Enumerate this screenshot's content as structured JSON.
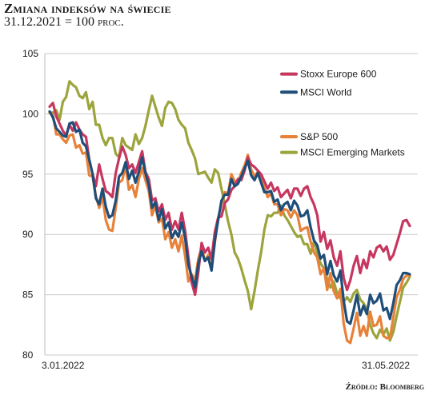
{
  "header": {
    "title": "Zmiana indeksów na świecie",
    "subtitle": "31.12.2021 = 100 proc."
  },
  "footer": {
    "source": "Źródło: Bloomberg"
  },
  "chart_data": {
    "type": "line",
    "title": "Zmiana indeksów na świecie",
    "subtitle": "31.12.2021 = 100 proc.",
    "xlabel": "",
    "ylabel": "",
    "ylim": [
      80,
      105
    ],
    "yticks": [
      80,
      85,
      90,
      95,
      100,
      105
    ],
    "xticks": [
      "3.01.2022",
      "31.05.2022"
    ],
    "grid": "horizontal",
    "legend": "right",
    "series": [
      {
        "name": "Stoxx Europe 600",
        "color": "#c7365f",
        "values": [
          100.6,
          100.9,
          99.8,
          99.2,
          98.6,
          98.2,
          99.1,
          98.6,
          99.3,
          98.7,
          98.3,
          98.1,
          96.2,
          95.0,
          94.0,
          95.8,
          94.6,
          93.6,
          93.4,
          93.1,
          95.1,
          96.3,
          97.3,
          96.6,
          95.5,
          95.8,
          95.1,
          96.0,
          96.9,
          95.2,
          94.6,
          92.8,
          93.0,
          91.9,
          92.5,
          91.2,
          91.8,
          90.4,
          91.1,
          90.4,
          91.8,
          90.3,
          88.1,
          86.0,
          85.0,
          86.9,
          89.3,
          88.5,
          88.9,
          88.0,
          90.2,
          91.4,
          91.5,
          92.6,
          92.9,
          93.7,
          94.0,
          94.6,
          94.5,
          95.3,
          96.4,
          95.8,
          95.6,
          95.3,
          95.0,
          94.4,
          93.8,
          94.3,
          93.6,
          93.9,
          93.1,
          93.4,
          93.7,
          93.0,
          93.8,
          93.8,
          93.2,
          93.8,
          94.0,
          93.1,
          92.5,
          91.6,
          89.4,
          90.2,
          88.8,
          89.5,
          88.1,
          87.4,
          88.6,
          86.4,
          85.4,
          86.2,
          87.4,
          88.2,
          86.8,
          87.9,
          87.2,
          88.6,
          88.1,
          88.9,
          89.1,
          88.6,
          89.0,
          87.9,
          88.3,
          89.2,
          90.1,
          91.1,
          91.2,
          90.7
        ],
        "label_y": 103.3
      },
      {
        "name": "MSCI World",
        "color": "#1f4e79",
        "values": [
          100.2,
          99.7,
          98.8,
          98.5,
          98.2,
          98.1,
          99.2,
          99.3,
          98.5,
          98.7,
          97.6,
          97.3,
          96.2,
          95.0,
          93.0,
          92.5,
          93.8,
          92.3,
          91.4,
          91.6,
          92.8,
          94.8,
          95.1,
          96.0,
          94.6,
          95.3,
          94.3,
          95.2,
          96.4,
          95.1,
          94.1,
          92.2,
          92.7,
          91.2,
          92.1,
          90.5,
          91.0,
          89.7,
          90.3,
          89.8,
          91.0,
          89.7,
          87.5,
          86.5,
          85.6,
          87.6,
          88.6,
          87.8,
          88.1,
          87.0,
          89.5,
          91.2,
          92.8,
          93.3,
          93.3,
          94.6,
          94.0,
          94.2,
          94.8,
          95.5,
          96.1,
          94.9,
          94.5,
          95.1,
          94.3,
          93.5,
          93.5,
          93.6,
          92.7,
          92.9,
          92.0,
          92.5,
          92.7,
          92.0,
          92.8,
          92.4,
          91.5,
          91.6,
          92.0,
          90.6,
          89.5,
          89.1,
          88.0,
          88.3,
          86.7,
          87.8,
          86.6,
          86.1,
          87.0,
          84.5,
          82.8,
          82.6,
          83.7,
          85.0,
          83.3,
          84.1,
          83.4,
          85.0,
          84.3,
          84.5,
          85.1,
          83.7,
          83.9,
          83.0,
          84.3,
          85.8,
          86.2,
          86.8,
          86.8,
          86.7
        ],
        "label_y": 101.8
      },
      {
        "name": "S&P 500",
        "color": "#e8823a",
        "values": [
          100.1,
          99.9,
          98.3,
          98.3,
          97.9,
          97.6,
          98.2,
          98.3,
          97.2,
          97.4,
          96.7,
          96.8,
          94.9,
          94.8,
          93.2,
          92.2,
          93.1,
          91.2,
          90.4,
          90.3,
          92.2,
          94.3,
          94.5,
          95.7,
          93.7,
          94.1,
          93.1,
          94.6,
          95.5,
          94.5,
          93.6,
          91.6,
          92.4,
          91.0,
          91.3,
          89.6,
          90.2,
          88.9,
          89.6,
          88.6,
          89.9,
          88.2,
          86.1,
          86.7,
          86.2,
          88.0,
          88.9,
          87.8,
          88.3,
          87.1,
          89.3,
          91.4,
          92.5,
          93.5,
          93.4,
          95.0,
          94.4,
          94.3,
          95.1,
          95.7,
          96.6,
          95.4,
          94.8,
          95.2,
          94.5,
          93.9,
          93.1,
          93.4,
          92.5,
          92.5,
          91.6,
          92.1,
          92.0,
          91.4,
          92.0,
          91.6,
          90.3,
          90.5,
          90.6,
          89.4,
          88.5,
          88.1,
          86.7,
          87.2,
          85.4,
          86.8,
          85.3,
          84.7,
          85.5,
          82.6,
          81.2,
          81.0,
          82.2,
          83.5,
          81.6,
          82.4,
          81.6,
          83.6,
          82.4,
          82.5,
          83.2,
          81.6,
          81.4,
          81.4,
          83.1,
          84.8,
          85.4,
          86.3,
          86.6,
          86.6
        ],
        "label_y": 98.1
      },
      {
        "name": "MSCI Emerging Markets",
        "color": "#9ca43c",
        "values": [
          100.1,
          100.1,
          100.3,
          99.5,
          101.0,
          101.4,
          102.7,
          102.4,
          102.2,
          101.5,
          101.3,
          101.8,
          100.4,
          101.0,
          99.1,
          99.1,
          98.0,
          97.4,
          98.0,
          98.0,
          96.7,
          96.4,
          98.0,
          97.4,
          97.2,
          97.0,
          98.3,
          97.5,
          98.0,
          99.0,
          100.3,
          101.5,
          100.6,
          99.7,
          99.0,
          100.5,
          101.0,
          100.9,
          100.4,
          99.5,
          99.1,
          98.8,
          97.6,
          97.0,
          96.3,
          95.0,
          95.1,
          95.2,
          94.7,
          94.3,
          95.4,
          95.1,
          93.8,
          92.5,
          91.1,
          90.0,
          88.5,
          88.0,
          87.2,
          86.2,
          85.3,
          83.8,
          85.3,
          87.0,
          88.5,
          90.4,
          91.6,
          91.5,
          91.8,
          91.8,
          92.4,
          91.6,
          91.2,
          90.7,
          90.2,
          89.8,
          89.9,
          89.2,
          89.2,
          88.4,
          89.4,
          88.4,
          87.6,
          87.2,
          86.3,
          85.6,
          86.1,
          85.1,
          84.7,
          84.4,
          84.8,
          84.4,
          85.1,
          85.4,
          84.6,
          84.3,
          83.8,
          82.5,
          81.8,
          81.4,
          82.1,
          81.7,
          82.2,
          81.2,
          81.9,
          83.2,
          84.4,
          85.6,
          86.0,
          86.5
        ],
        "label_y": 96.8
      }
    ]
  }
}
